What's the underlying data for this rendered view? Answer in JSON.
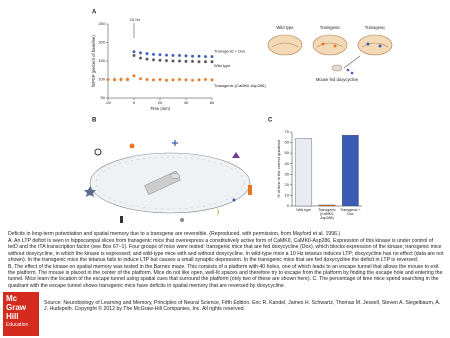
{
  "chart_data": [
    {
      "type": "scatter",
      "panel": "A",
      "x_label": "Time (min)",
      "y_label": "fEPSP (percent of baseline)",
      "annotation": "10 Hz",
      "x": [
        -20,
        -15,
        -10,
        -5,
        0,
        5,
        10,
        15,
        20,
        25,
        30,
        35,
        40,
        45,
        50,
        55,
        60
      ],
      "xlim": [
        -20,
        60
      ],
      "xticks": [
        -20,
        0,
        20,
        40,
        60
      ],
      "ylim": [
        50,
        250
      ],
      "yticks": [
        50,
        100,
        150,
        200,
        250
      ],
      "series": [
        {
          "name": "Transgenic + Dox",
          "color": "#3b5bb5",
          "values": [
            100,
            101,
            99,
            100,
            175,
            172,
            170,
            168,
            167,
            166,
            165,
            165,
            164,
            163,
            163,
            162,
            162
          ]
        },
        {
          "name": "Wild type",
          "color": "#555555",
          "values": [
            100,
            100,
            101,
            99,
            165,
            158,
            155,
            153,
            152,
            151,
            150,
            150,
            149,
            149,
            148,
            148,
            148
          ]
        },
        {
          "name": "Transgenic (CaMKII-Asp286)",
          "color": "#e87722",
          "values": [
            100,
            99,
            100,
            101,
            110,
            102,
            100,
            99,
            100,
            98,
            99,
            100,
            99,
            98,
            99,
            100,
            99
          ]
        }
      ]
    },
    {
      "type": "bar",
      "panel": "C",
      "y_label": "% of time in the correct quadrant",
      "categories": [
        "Wild type",
        "Transgenic (CaMKII-Asp286)",
        "Transgenic + Dox"
      ],
      "values": [
        64,
        1,
        67
      ],
      "colors": [
        "#e8ecf2",
        "#e87722",
        "#3b5bb5"
      ],
      "ylim": [
        0,
        70
      ],
      "yticks": [
        0,
        10,
        20,
        30,
        40,
        50,
        60,
        70
      ]
    }
  ],
  "mice": {
    "panel": "",
    "labels": [
      "Wild type",
      "Transgenic",
      "Transgenic",
      "Mouse fed doxycycline"
    ]
  },
  "panel_b": "B",
  "caption": {
    "heading": "Deficits in long-term potentiation and spatial memory due to a transgene are reversible. (Reproduced, with permission, from Mayford et al. 1996.)",
    "panel_a": "A. An LTP deficit is seen in hippocampal slices from transgenic mice that overexpress a constitutively active form of CaMKII, CaMKII-Asp286. Expression of this kinase is under control of tetO and the tTA transcription factor (see Box 67–1). Four groups of mice were tested: transgenic mice that are fed doxycycline (Dox), which blocks expression of the kinase; transgenic mice without doxycycline, in which the kinase is expressed; and wild-type mice with and without doxycycline. In wild-type mice a 10 Hz tetanus induces LTP; doxycycline has no effect (data are not shown). In the transgenic mice the tetanus fails to induce LTP but causes a small synaptic depression. In the transgenic mice that are fed doxycycline the deficit in LTP is reversed.",
    "panel_b": "B. The effect of the kinase on spatial memory was tested in the Barnes maze. This consists of a platform with 40 holes, one of which leads to an escape tunnel that allows the mouse to exit the platform. The mouse is placed in the center of the platform. Mice do not like open, well-lit spaces and therefore try to escape from the platform by finding the escape hole and entering the tunnel. Mice learn the location of the escape tunnel using spatial cues that surround the platform (only two of these are shown here). C. The percentage of time mice spend searching in the quadrant with the escape tunnel shows transgenic mice have deficits in spatial memory that are reversed by doxycycline."
  },
  "logo": {
    "line1": "Mc",
    "line2": "Graw",
    "line3": "Hill",
    "line4": "Education"
  },
  "source": "Source: Neurobiology of Learning and Memory, Principles of Neural Science, Fifth Edition. Eric R. Kandel, James H. Schwartz, Thomas M. Jessell, Steven A. Siegelbaum, A. J. Hudspeth. Copyright © 2012 by The McGraw-Hill Companies, Inc. All rights reserved."
}
